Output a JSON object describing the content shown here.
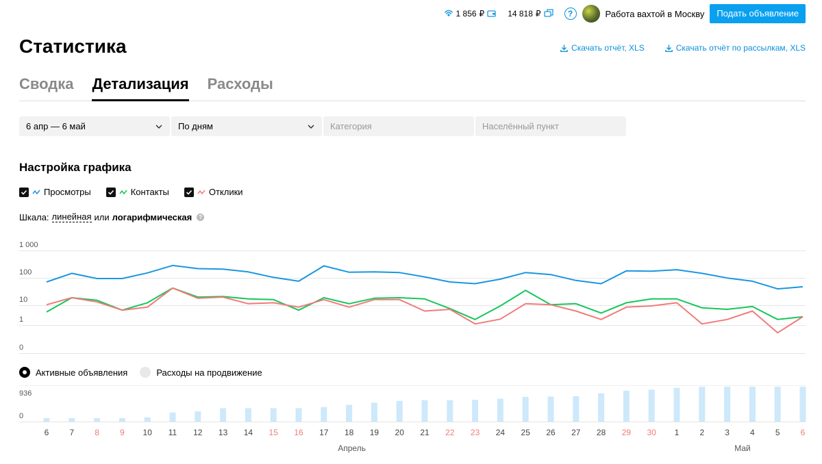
{
  "topbar": {
    "balance": "1 856",
    "bonus": "14 818",
    "currency_symbol": "₽",
    "profile_name": "Работа вахтой в Москву",
    "post_button": "Подать объявление"
  },
  "page_title": "Статистика",
  "downloads": {
    "report": "Скачать отчёт, XLS",
    "mailing_report": "Скачать отчёт по рассылкам, XLS"
  },
  "tabs": [
    {
      "label": "Сводка",
      "active": false
    },
    {
      "label": "Детализация",
      "active": true
    },
    {
      "label": "Расходы",
      "active": false
    }
  ],
  "filters": {
    "period": "6 апр — 6 май",
    "grouping": "По дням",
    "category_placeholder": "Категория",
    "location_placeholder": "Населённый пункт"
  },
  "settings": {
    "title": "Настройка графика",
    "series_checks": [
      {
        "label": "Просмотры",
        "color": "#1a96e0",
        "checked": true
      },
      {
        "label": "Контакты",
        "color": "#16c65a",
        "checked": true
      },
      {
        "label": "Отклики",
        "color": "#f27a7a",
        "checked": true
      }
    ],
    "scale_label": "Шкала:",
    "scale_linear": "линейная",
    "scale_or": "или",
    "scale_log": "логарифмическая"
  },
  "radios": {
    "active_ads": "Активные объявления",
    "promo_costs": "Расходы на продвижение"
  },
  "chart_data": [
    {
      "type": "line",
      "scale": "log",
      "y_ticks": [
        "1 000",
        "100",
        "10",
        "1",
        "0"
      ],
      "x": [
        "6",
        "7",
        "8",
        "9",
        "10",
        "11",
        "12",
        "13",
        "14",
        "15",
        "16",
        "17",
        "18",
        "19",
        "20",
        "21",
        "22",
        "23",
        "24",
        "25",
        "26",
        "27",
        "28",
        "29",
        "30",
        "1",
        "2",
        "3",
        "4",
        "5",
        "6"
      ],
      "weekend_days": [
        2,
        3,
        9,
        10,
        16,
        17,
        23,
        24,
        30
      ],
      "month_labels": [
        {
          "label": "Апрель",
          "index": 12
        },
        {
          "label": "Май",
          "index": 27.5
        }
      ],
      "series": [
        {
          "name": "Просмотры",
          "color": "#1a96e0",
          "values": [
            75,
            155,
            100,
            100,
            160,
            300,
            230,
            220,
            175,
            110,
            80,
            290,
            170,
            175,
            165,
            115,
            75,
            65,
            95,
            165,
            140,
            85,
            65,
            190,
            185,
            210,
            155,
            105,
            80,
            42,
            50
          ]
        },
        {
          "name": "Контакты",
          "color": "#16c65a",
          "values": [
            6,
            20,
            16,
            7,
            13,
            45,
            21,
            22,
            18,
            17,
            7,
            20,
            12,
            19,
            20,
            18,
            8,
            3.2,
            10,
            37,
            11,
            12,
            5.5,
            13,
            18,
            18,
            8.5,
            7.5,
            9.5,
            3.2,
            4
          ]
        },
        {
          "name": "Отклики",
          "color": "#f27a7a",
          "values": [
            11,
            20,
            14,
            7,
            9,
            45,
            19,
            21,
            12,
            13,
            9,
            17,
            9,
            17,
            17,
            6.5,
            7.5,
            2.2,
            3.3,
            12,
            11,
            6.5,
            3.2,
            9,
            10,
            13,
            2.2,
            3.2,
            6.5,
            1.05,
            4
          ]
        }
      ]
    },
    {
      "type": "bar",
      "series": [
        {
          "name": "Активные объявления",
          "color": "#cde9fb"
        }
      ],
      "y_ticks": [
        "936",
        "0"
      ],
      "ylim": [
        0,
        1000
      ],
      "values": [
        95,
        95,
        95,
        95,
        120,
        250,
        280,
        370,
        370,
        370,
        370,
        400,
        460,
        520,
        570,
        590,
        590,
        600,
        630,
        680,
        690,
        700,
        780,
        850,
        880,
        930,
        960,
        960,
        960,
        960,
        960
      ]
    }
  ]
}
